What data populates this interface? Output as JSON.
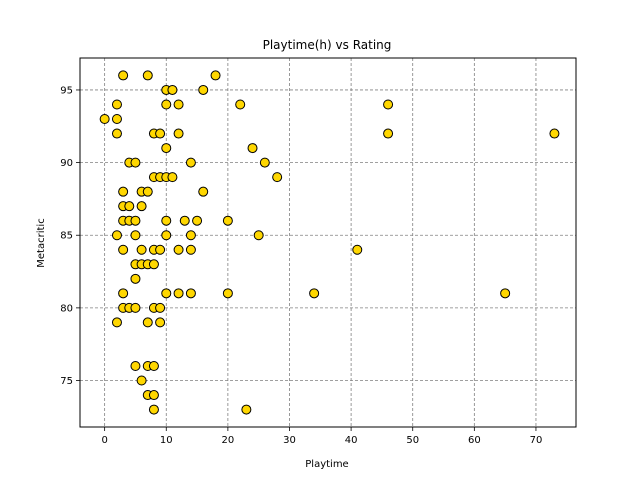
{
  "chart_data": {
    "type": "scatter",
    "title": "Playtime(h) vs Rating",
    "xlabel": "Playtime",
    "ylabel": "Metacritic",
    "xlim": [
      -4,
      76.5
    ],
    "ylim": [
      71.8,
      97.2
    ],
    "xticks": [
      0,
      10,
      20,
      30,
      40,
      50,
      60,
      70
    ],
    "yticks": [
      75,
      80,
      85,
      90,
      95
    ],
    "grid": true,
    "marker_color": "#FFD700",
    "marker_edge": "#000000",
    "points": [
      {
        "x": 0,
        "y": 93
      },
      {
        "x": 2,
        "y": 94
      },
      {
        "x": 2,
        "y": 93
      },
      {
        "x": 2,
        "y": 92
      },
      {
        "x": 2,
        "y": 85
      },
      {
        "x": 2,
        "y": 79
      },
      {
        "x": 3,
        "y": 96
      },
      {
        "x": 3,
        "y": 88
      },
      {
        "x": 3,
        "y": 87
      },
      {
        "x": 3,
        "y": 86
      },
      {
        "x": 3,
        "y": 84
      },
      {
        "x": 3,
        "y": 81
      },
      {
        "x": 3,
        "y": 80
      },
      {
        "x": 4,
        "y": 90
      },
      {
        "x": 4,
        "y": 87
      },
      {
        "x": 4,
        "y": 86
      },
      {
        "x": 4,
        "y": 80
      },
      {
        "x": 5,
        "y": 90
      },
      {
        "x": 5,
        "y": 86
      },
      {
        "x": 5,
        "y": 85
      },
      {
        "x": 5,
        "y": 83
      },
      {
        "x": 5,
        "y": 82
      },
      {
        "x": 5,
        "y": 80
      },
      {
        "x": 5,
        "y": 76
      },
      {
        "x": 6,
        "y": 88
      },
      {
        "x": 6,
        "y": 87
      },
      {
        "x": 6,
        "y": 84
      },
      {
        "x": 6,
        "y": 83
      },
      {
        "x": 6,
        "y": 75
      },
      {
        "x": 7,
        "y": 96
      },
      {
        "x": 7,
        "y": 88
      },
      {
        "x": 7,
        "y": 83
      },
      {
        "x": 7,
        "y": 79
      },
      {
        "x": 7,
        "y": 76
      },
      {
        "x": 7,
        "y": 74
      },
      {
        "x": 8,
        "y": 92
      },
      {
        "x": 8,
        "y": 89
      },
      {
        "x": 8,
        "y": 84
      },
      {
        "x": 8,
        "y": 83
      },
      {
        "x": 8,
        "y": 80
      },
      {
        "x": 8,
        "y": 76
      },
      {
        "x": 8,
        "y": 74
      },
      {
        "x": 8,
        "y": 73
      },
      {
        "x": 9,
        "y": 92
      },
      {
        "x": 9,
        "y": 89
      },
      {
        "x": 9,
        "y": 84
      },
      {
        "x": 9,
        "y": 80
      },
      {
        "x": 9,
        "y": 79
      },
      {
        "x": 10,
        "y": 95
      },
      {
        "x": 10,
        "y": 94
      },
      {
        "x": 10,
        "y": 91
      },
      {
        "x": 10,
        "y": 89
      },
      {
        "x": 10,
        "y": 86
      },
      {
        "x": 10,
        "y": 85
      },
      {
        "x": 10,
        "y": 81
      },
      {
        "x": 11,
        "y": 95
      },
      {
        "x": 11,
        "y": 89
      },
      {
        "x": 12,
        "y": 94
      },
      {
        "x": 12,
        "y": 92
      },
      {
        "x": 12,
        "y": 84
      },
      {
        "x": 12,
        "y": 81
      },
      {
        "x": 13,
        "y": 86
      },
      {
        "x": 14,
        "y": 90
      },
      {
        "x": 14,
        "y": 85
      },
      {
        "x": 14,
        "y": 84
      },
      {
        "x": 14,
        "y": 81
      },
      {
        "x": 15,
        "y": 86
      },
      {
        "x": 16,
        "y": 95
      },
      {
        "x": 16,
        "y": 88
      },
      {
        "x": 18,
        "y": 96
      },
      {
        "x": 20,
        "y": 86
      },
      {
        "x": 20,
        "y": 81
      },
      {
        "x": 22,
        "y": 94
      },
      {
        "x": 23,
        "y": 73
      },
      {
        "x": 24,
        "y": 91
      },
      {
        "x": 25,
        "y": 85
      },
      {
        "x": 26,
        "y": 90
      },
      {
        "x": 28,
        "y": 89
      },
      {
        "x": 34,
        "y": 81
      },
      {
        "x": 41,
        "y": 84
      },
      {
        "x": 46,
        "y": 94
      },
      {
        "x": 46,
        "y": 92
      },
      {
        "x": 65,
        "y": 81
      },
      {
        "x": 73,
        "y": 92
      }
    ]
  }
}
